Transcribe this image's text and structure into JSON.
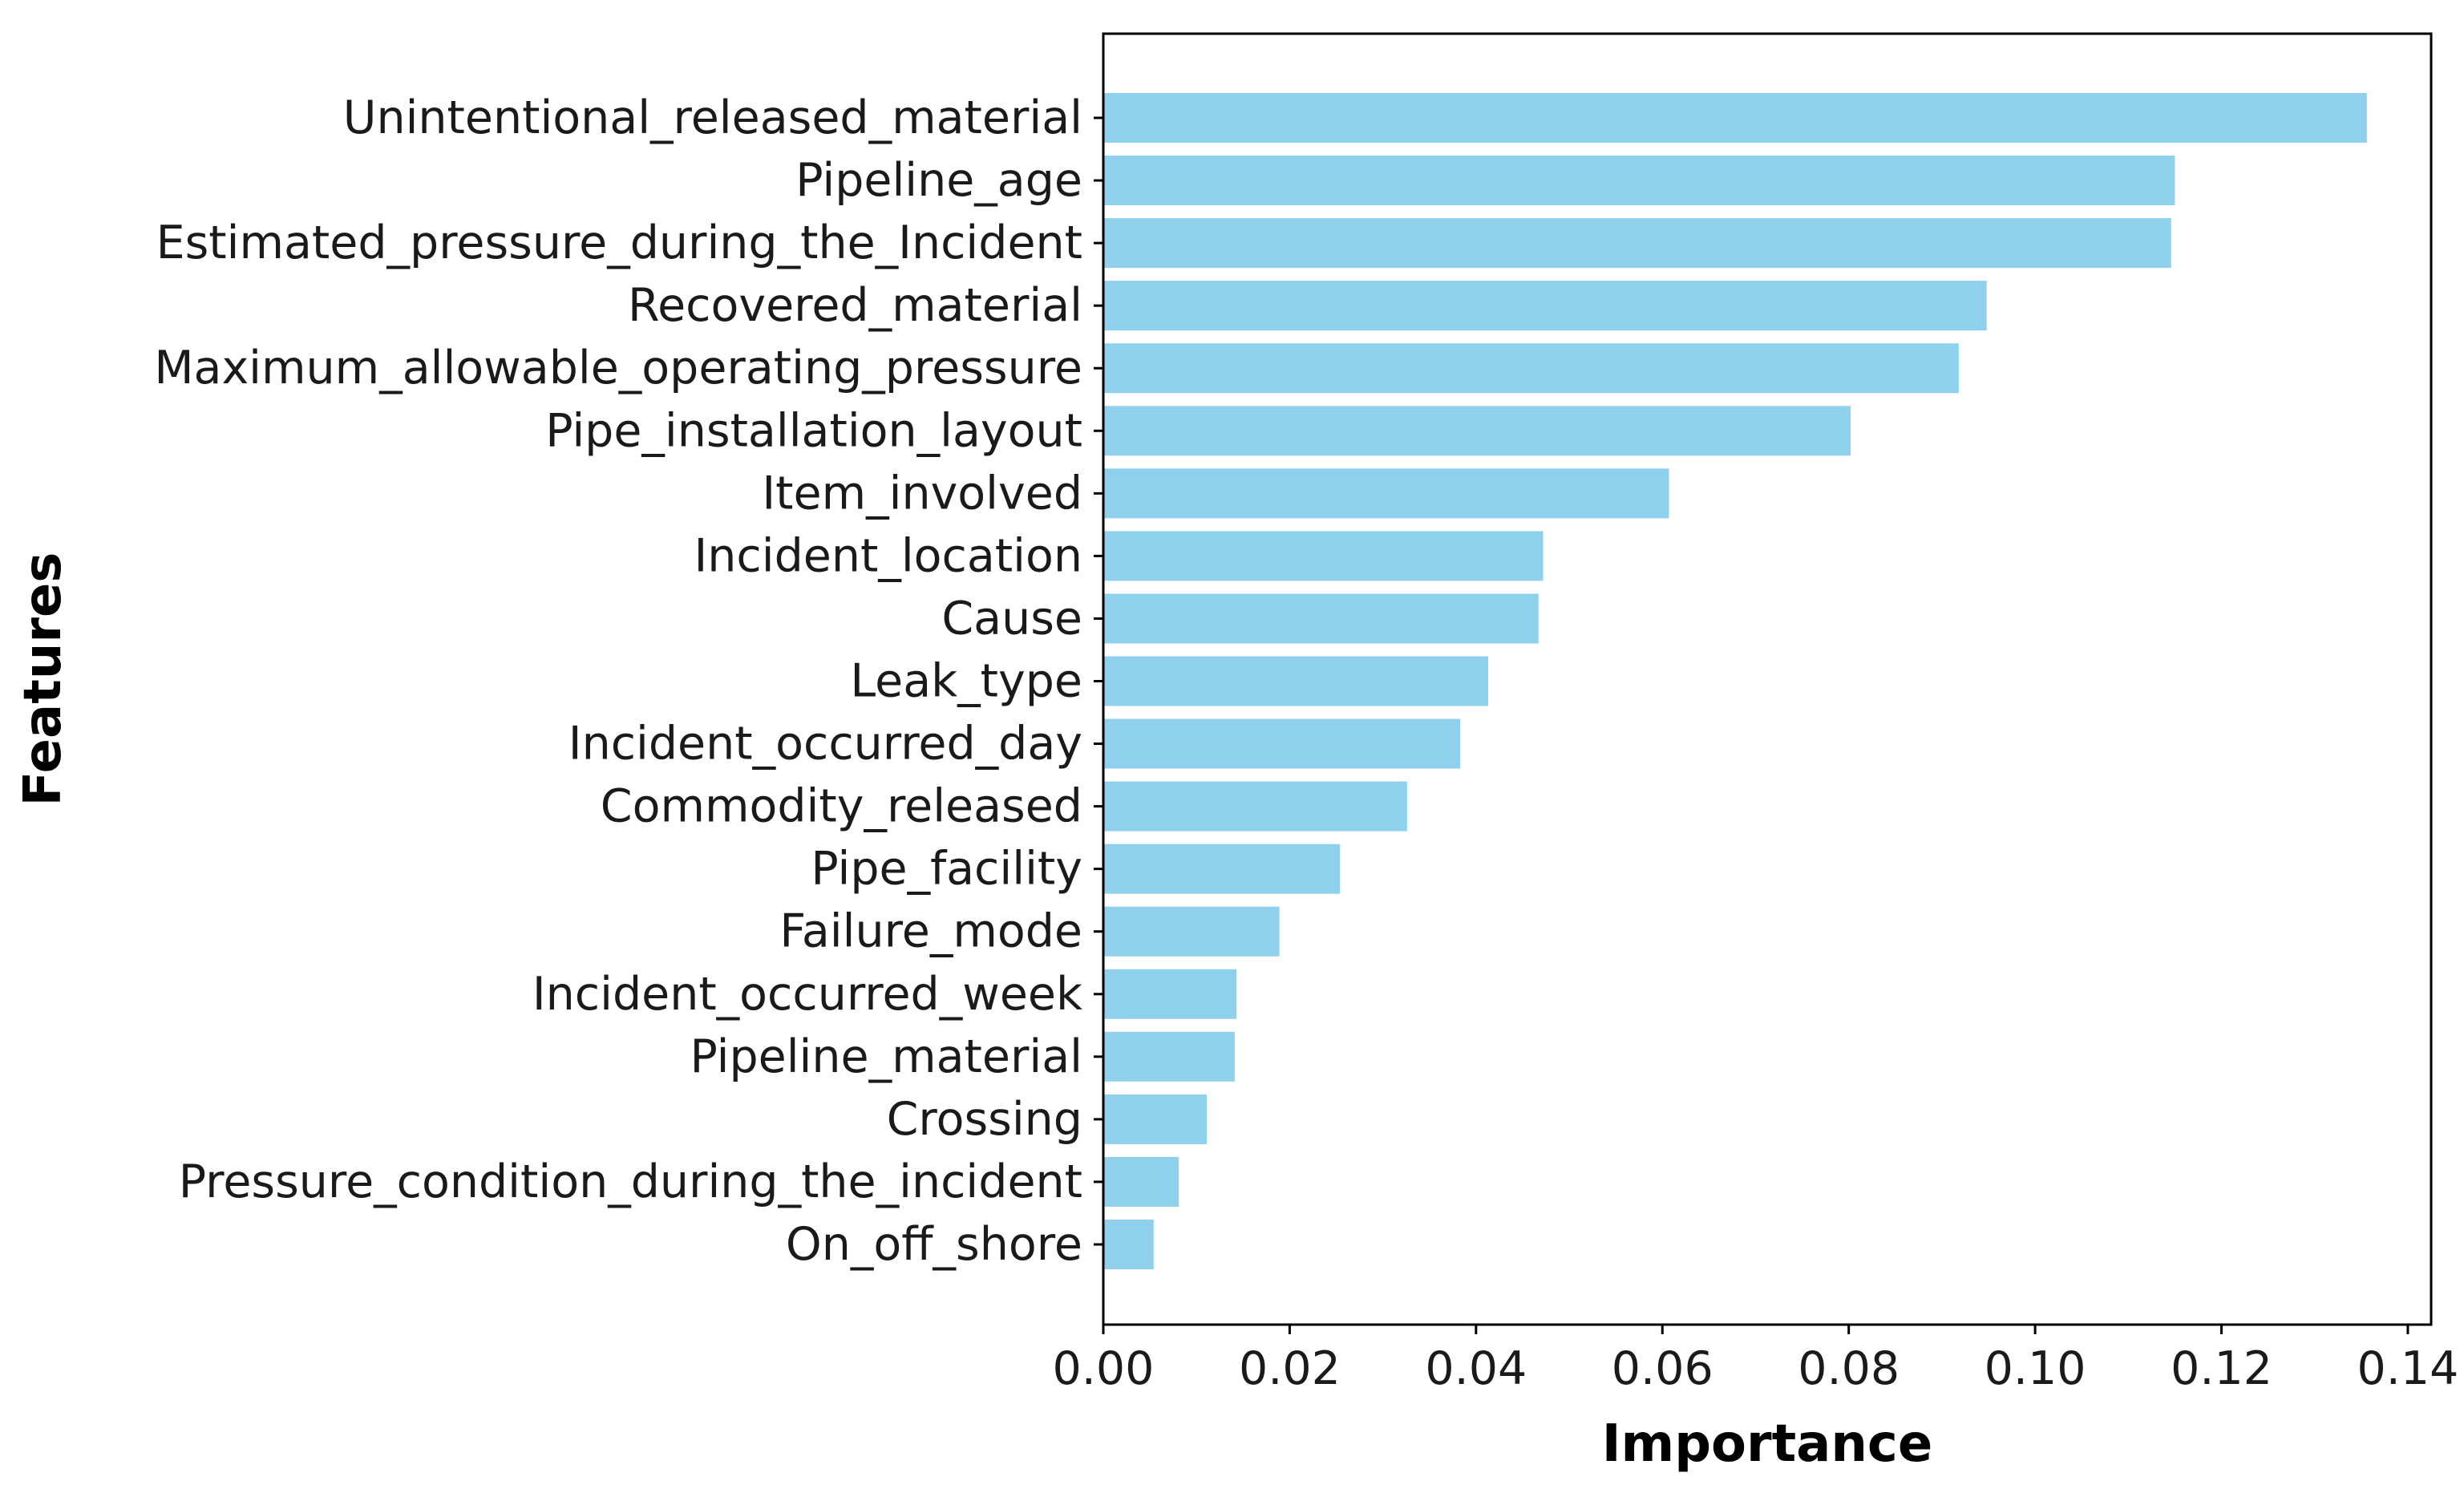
{
  "chart_data": {
    "type": "bar",
    "orientation": "horizontal",
    "xlabel": "Importance",
    "ylabel": "Features",
    "xlim": [
      0,
      0.1425
    ],
    "xticks": [
      0.0,
      0.02,
      0.04,
      0.06,
      0.08,
      0.1,
      0.12,
      0.14
    ],
    "xtick_labels": [
      "0.00",
      "0.02",
      "0.04",
      "0.06",
      "0.08",
      "0.10",
      "0.12",
      "0.14"
    ],
    "bar_color": "#8fd1ec",
    "grid": false,
    "categories": [
      "Unintentional_released_material",
      "Pipeline_age",
      "Estimated_pressure_during_the_Incident",
      "Recovered_material",
      "Maximum_allowable_operating_pressure",
      "Pipe_installation_layout",
      "Item_involved",
      "Incident_location",
      "Cause",
      "Leak_type",
      "Incident_occurred_day",
      "Commodity_released",
      "Pipe_facility",
      "Failure_mode",
      "Incident_occurred_week",
      "Pipeline_material",
      "Crossing",
      "Pressure_condition_during_the_incident",
      "On_off_shore"
    ],
    "values": [
      0.1356,
      0.115,
      0.1146,
      0.0948,
      0.0918,
      0.0802,
      0.0607,
      0.0472,
      0.0467,
      0.0413,
      0.0383,
      0.0326,
      0.0254,
      0.0189,
      0.0143,
      0.0141,
      0.0111,
      0.0081,
      0.0054
    ]
  }
}
